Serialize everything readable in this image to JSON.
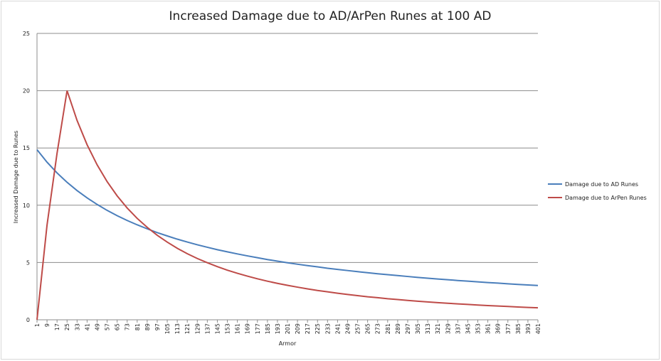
{
  "chart_data": {
    "type": "line",
    "title": "Increased Damage due to AD/ArPen Runes at 100 AD",
    "x_label": "Armor",
    "y_label": "Increased Damage due to Runes",
    "x": [
      1,
      9,
      17,
      25,
      33,
      41,
      49,
      57,
      65,
      73,
      81,
      89,
      97,
      105,
      113,
      121,
      129,
      137,
      145,
      153,
      161,
      169,
      177,
      185,
      193,
      201,
      209,
      217,
      225,
      233,
      241,
      249,
      257,
      265,
      273,
      281,
      289,
      297,
      305,
      313,
      321,
      329,
      337,
      345,
      353,
      361,
      369,
      377,
      385,
      393,
      401
    ],
    "series": [
      {
        "name": "Damage due to AD Runes",
        "color": "#4a7ebb",
        "values": [
          14.85,
          13.76,
          12.82,
          12.0,
          11.28,
          10.64,
          10.07,
          9.55,
          9.09,
          8.67,
          8.29,
          7.94,
          7.61,
          7.32,
          7.04,
          6.79,
          6.55,
          6.33,
          6.12,
          5.93,
          5.75,
          5.58,
          5.42,
          5.26,
          5.12,
          4.98,
          4.85,
          4.73,
          4.62,
          4.5,
          4.4,
          4.3,
          4.2,
          4.11,
          4.02,
          3.94,
          3.86,
          3.78,
          3.7,
          3.63,
          3.56,
          3.5,
          3.43,
          3.37,
          3.31,
          3.25,
          3.2,
          3.14,
          3.09,
          3.04,
          2.99
        ]
      },
      {
        "name": "Damage due to ArPen Runes",
        "color": "#be4b48",
        "values": [
          0,
          8.26,
          14.53,
          20.0,
          17.4,
          15.28,
          13.53,
          12.06,
          10.82,
          9.76,
          8.85,
          8.07,
          7.38,
          6.78,
          6.24,
          5.77,
          5.35,
          4.98,
          4.64,
          4.33,
          4.06,
          3.81,
          3.58,
          3.37,
          3.18,
          3.01,
          2.85,
          2.7,
          2.56,
          2.44,
          2.32,
          2.21,
          2.11,
          2.01,
          1.93,
          1.84,
          1.77,
          1.69,
          1.62,
          1.56,
          1.5,
          1.44,
          1.39,
          1.34,
          1.29,
          1.24,
          1.2,
          1.16,
          1.12,
          1.08,
          1.05
        ]
      }
    ],
    "xlim": [
      1,
      401
    ],
    "xticks": [
      1,
      9,
      17,
      25,
      33,
      41,
      49,
      57,
      65,
      73,
      81,
      89,
      97,
      105,
      113,
      121,
      129,
      137,
      145,
      153,
      161,
      169,
      177,
      185,
      193,
      201,
      209,
      217,
      225,
      233,
      241,
      249,
      257,
      265,
      273,
      281,
      289,
      297,
      305,
      313,
      321,
      329,
      337,
      345,
      353,
      361,
      369,
      377,
      385,
      393,
      401
    ],
    "ylim": [
      0,
      25
    ],
    "yticks": [
      0,
      5,
      10,
      15,
      20,
      25
    ],
    "grid": true,
    "legend": "right"
  }
}
